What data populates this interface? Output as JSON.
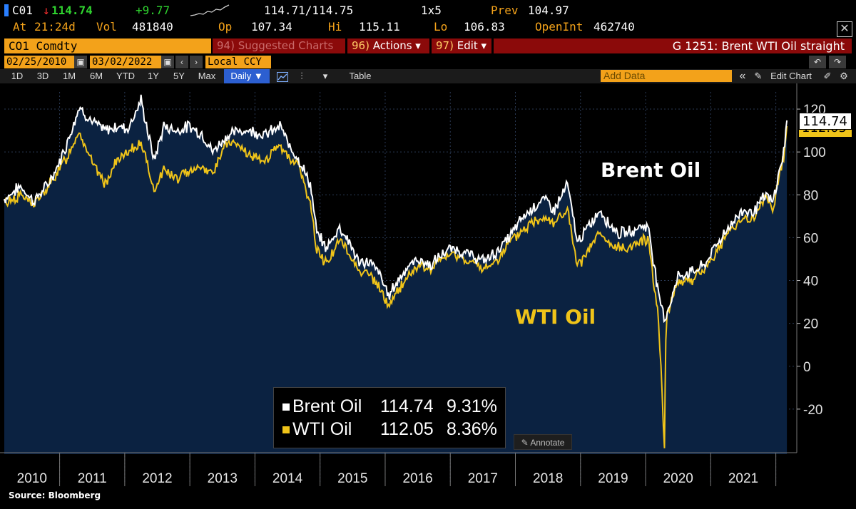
{
  "header": {
    "ticker": "C01",
    "arrow": "↓",
    "last": "114.74",
    "change": "+9.77",
    "bid_ask": "114.71/114.75",
    "size": "1x5",
    "prev_label": "Prev",
    "prev": "104.97",
    "at_label": "At",
    "time": "21:24d",
    "vol_label": "Vol",
    "vol": "481840",
    "op_label": "Op",
    "op": "107.34",
    "hi_label": "Hi",
    "hi": "115.11",
    "lo_label": "Lo",
    "lo": "106.83",
    "oi_label": "OpenInt",
    "oi": "462740"
  },
  "toolbar": {
    "security": "CO1 Comdty",
    "suggested_num": "94)",
    "suggested": "Suggested Charts",
    "actions_num": "96)",
    "actions": "Actions ▾",
    "edit_num": "97)",
    "edit": "Edit ▾",
    "chart_title": "G 1251: Brent WTI Oil straight"
  },
  "dates": {
    "start": "02/25/2010",
    "end": "03/02/2022",
    "currency": "Local CCY"
  },
  "ranges": [
    "1D",
    "3D",
    "1M",
    "6M",
    "YTD",
    "1Y",
    "5Y",
    "Max"
  ],
  "frequency": "Daily ▼",
  "table_label": "Table",
  "add_data_placeholder": "Add Data",
  "edit_chart": "Edit Chart",
  "annotate_label": "Annotate",
  "source": "Source: Bloomberg",
  "colors": {
    "brent": "#ffffff",
    "wti": "#f0c419",
    "area": "#0b2241",
    "accent": "#f3a21a"
  },
  "chart_data": {
    "type": "line",
    "title": "",
    "xlabel": "",
    "ylabel": "",
    "ylim": [
      -38,
      128
    ],
    "yticks": [
      120,
      100,
      80,
      60,
      40,
      20,
      0,
      -20
    ],
    "x_years": [
      "2010",
      "2011",
      "2012",
      "2013",
      "2014",
      "2015",
      "2016",
      "2017",
      "2018",
      "2019",
      "2020",
      "2021"
    ],
    "annotations": [
      {
        "text": "Brent Oil",
        "series": "Brent Oil"
      },
      {
        "text": "WTI Oil",
        "series": "WTI Oil"
      }
    ],
    "last_price_label": "114.74",
    "series": [
      {
        "name": "Brent Oil",
        "color": "#ffffff",
        "last": "114.74",
        "pct": "9.31%",
        "x": [
          2010.15,
          2010.4,
          2010.6,
          2010.8,
          2010.95,
          2011.1,
          2011.3,
          2011.5,
          2011.7,
          2011.9,
          2012.05,
          2012.25,
          2012.45,
          2012.6,
          2012.8,
          2013.0,
          2013.2,
          2013.35,
          2013.55,
          2013.75,
          2013.95,
          2014.15,
          2014.4,
          2014.5,
          2014.65,
          2014.85,
          2014.95,
          2015.1,
          2015.3,
          2015.45,
          2015.6,
          2015.75,
          2015.9,
          2016.05,
          2016.3,
          2016.5,
          2016.7,
          2016.9,
          2017.05,
          2017.3,
          2017.5,
          2017.7,
          2017.9,
          2018.1,
          2018.3,
          2018.45,
          2018.6,
          2018.8,
          2018.95,
          2019.1,
          2019.3,
          2019.45,
          2019.6,
          2019.8,
          2019.95,
          2020.05,
          2020.2,
          2020.3,
          2020.5,
          2020.7,
          2020.9,
          2021.05,
          2021.25,
          2021.5,
          2021.65,
          2021.85,
          2021.95,
          2022.05,
          2022.12,
          2022.17
        ],
        "y": [
          78,
          84,
          77,
          84,
          92,
          103,
          121,
          114,
          110,
          112,
          111,
          124,
          96,
          112,
          110,
          112,
          108,
          100,
          107,
          110,
          110,
          108,
          112,
          104,
          98,
          85,
          62,
          55,
          65,
          58,
          48,
          49,
          44,
          33,
          45,
          50,
          47,
          53,
          55,
          52,
          49,
          53,
          60,
          69,
          75,
          78,
          73,
          85,
          58,
          64,
          73,
          66,
          62,
          63,
          66,
          64,
          33,
          22,
          42,
          44,
          47,
          55,
          64,
          73,
          72,
          80,
          76,
          90,
          100,
          114.74
        ]
      },
      {
        "name": "WTI Oil",
        "color": "#f0c419",
        "last": "112.05",
        "pct": "8.36%",
        "x": [
          2010.15,
          2010.4,
          2010.6,
          2010.8,
          2010.95,
          2011.1,
          2011.3,
          2011.5,
          2011.7,
          2011.9,
          2012.05,
          2012.25,
          2012.45,
          2012.6,
          2012.8,
          2013.0,
          2013.2,
          2013.35,
          2013.55,
          2013.75,
          2013.95,
          2014.15,
          2014.4,
          2014.5,
          2014.65,
          2014.85,
          2014.95,
          2015.1,
          2015.3,
          2015.45,
          2015.6,
          2015.75,
          2015.9,
          2016.05,
          2016.3,
          2016.5,
          2016.7,
          2016.9,
          2017.05,
          2017.3,
          2017.5,
          2017.7,
          2017.9,
          2018.1,
          2018.3,
          2018.45,
          2018.6,
          2018.8,
          2018.95,
          2019.1,
          2019.3,
          2019.45,
          2019.6,
          2019.8,
          2019.95,
          2020.05,
          2020.2,
          2020.29,
          2020.31,
          2020.33,
          2020.5,
          2020.7,
          2020.9,
          2021.05,
          2021.25,
          2021.5,
          2021.65,
          2021.85,
          2021.95,
          2022.05,
          2022.12,
          2022.17
        ],
        "y": [
          76,
          80,
          76,
          82,
          90,
          97,
          110,
          95,
          85,
          97,
          99,
          105,
          82,
          92,
          87,
          92,
          93,
          90,
          104,
          103,
          97,
          96,
          103,
          98,
          95,
          76,
          54,
          48,
          59,
          52,
          45,
          43,
          37,
          28,
          40,
          47,
          45,
          51,
          52,
          49,
          45,
          49,
          57,
          63,
          68,
          70,
          67,
          73,
          46,
          53,
          62,
          56,
          55,
          56,
          59,
          58,
          22,
          -37,
          12,
          25,
          40,
          40,
          45,
          52,
          61,
          70,
          68,
          80,
          72,
          88,
          98,
          112.05
        ]
      }
    ]
  }
}
